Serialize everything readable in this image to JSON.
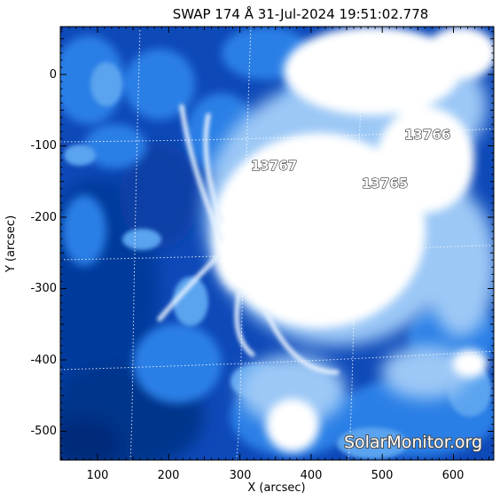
{
  "title": "SWAP 174 Å 31-Jul-2024 19:51:02.778",
  "xlabel": "X (arcsec)",
  "ylabel": "Y (arcsec)",
  "x_ticks": [
    "100",
    "200",
    "300",
    "400",
    "500",
    "600"
  ],
  "y_ticks": [
    "0",
    "-100",
    "-200",
    "-300",
    "-400",
    "-500"
  ],
  "regions": [
    {
      "id": "13766",
      "x": 520,
      "y": -85
    },
    {
      "id": "13767",
      "x": 315,
      "y": -120
    },
    {
      "id": "13765",
      "x": 470,
      "y": -145
    }
  ],
  "watermark": "SolarMonitor.org",
  "colors": {
    "dark": "#05348c",
    "mid": "#1f78e0",
    "light": "#9cc8f6",
    "bright": "#ffffff"
  }
}
